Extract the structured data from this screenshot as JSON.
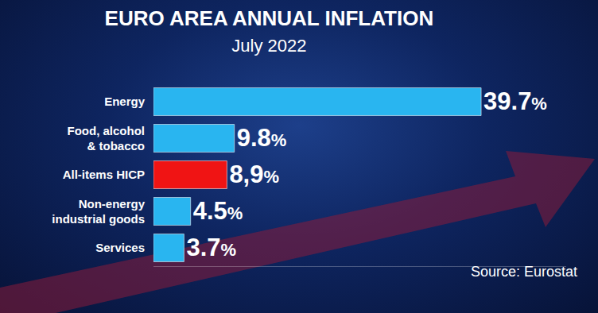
{
  "chart_data": {
    "type": "bar",
    "orientation": "horizontal",
    "title": "EURO AREA ANNUAL INFLATION",
    "subtitle": "July 2022",
    "categories": [
      "Energy",
      "Food, alcohol\n& tobacco",
      "All-items HICP",
      "Non-energy\nindustrial goods",
      "Services"
    ],
    "values": [
      39.7,
      9.8,
      8.9,
      4.5,
      3.7
    ],
    "value_labels": [
      "39.7%",
      "9.8%",
      "8,9%",
      "4.5%",
      "3.7%"
    ],
    "colors": [
      "#29b5f0",
      "#29b5f0",
      "#f01414",
      "#29b5f0",
      "#29b5f0"
    ],
    "data_labels": true,
    "tick_labels": "y",
    "grid": false,
    "xlim": [
      0,
      50
    ],
    "annotations": [
      "Source: Eurostat"
    ]
  }
}
